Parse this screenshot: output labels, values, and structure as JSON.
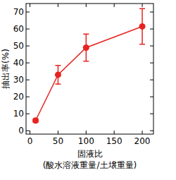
{
  "chart_data": {
    "type": "line",
    "x_label": [
      "固液比",
      "(酸水溶液重量/土壌重量)"
    ],
    "y_label": "抽出率(%)",
    "x": [
      10,
      50,
      100,
      200
    ],
    "series": [
      {
        "name": "抽出率",
        "color": "#e8231f",
        "marker": "circle",
        "line_style": "solid",
        "values": [
          6,
          33,
          49,
          61.5
        ],
        "errors": [
          1,
          5.5,
          8,
          10.5
        ]
      }
    ],
    "xlim": [
      -7,
      220
    ],
    "xticks": [
      0,
      50,
      100,
      150,
      200
    ],
    "ylim": [
      -2,
      75
    ],
    "yticks": [
      0,
      10,
      20,
      30,
      40,
      50,
      60,
      70
    ],
    "grid": false
  }
}
